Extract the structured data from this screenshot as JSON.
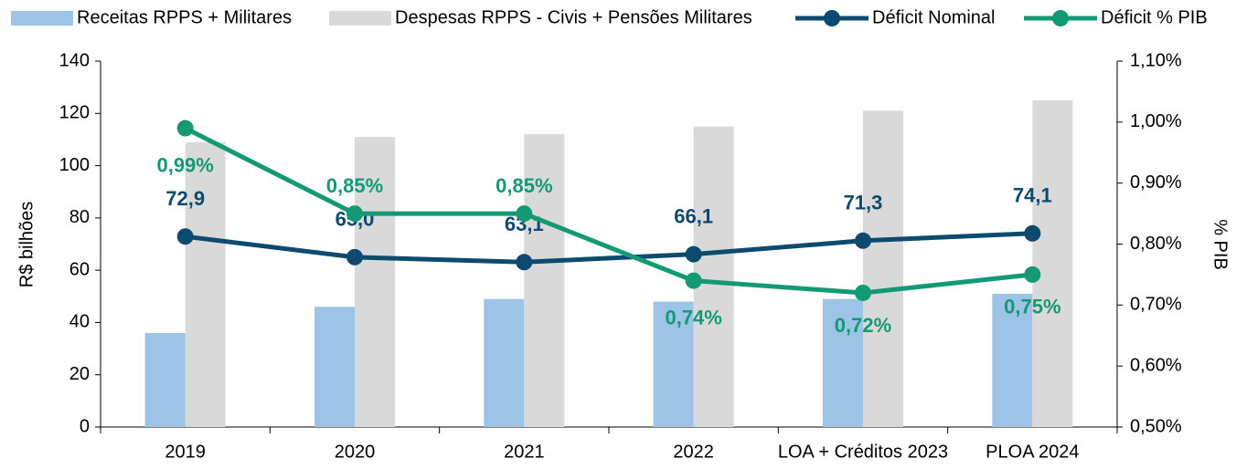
{
  "chart_data": {
    "type": "bar-line",
    "categories": [
      "2019",
      "2020",
      "2021",
      "2022",
      "LOA + Créditos 2023",
      "PLOA 2024"
    ],
    "series": [
      {
        "name": "Receitas RPPS + Militares",
        "type": "bar",
        "color": "#9dc3e6",
        "values": [
          36,
          46,
          49,
          48,
          49,
          51
        ]
      },
      {
        "name": "Despesas RPPS - Civis + Pensões Militares",
        "type": "bar",
        "color": "#d9d9d9",
        "values": [
          109,
          111,
          112,
          115,
          121,
          125
        ]
      },
      {
        "name": "Déficit Nominal",
        "type": "line",
        "color": "#0d4a70",
        "values": [
          72.9,
          65.0,
          63.1,
          66.1,
          71.3,
          74.1
        ],
        "value_labels": [
          "72,9",
          "65,0",
          "63,1",
          "66,1",
          "71,3",
          "74,1"
        ]
      },
      {
        "name": "Déficit % PIB",
        "type": "line",
        "axis": "y2",
        "color": "#139a74",
        "values": [
          0.99,
          0.85,
          0.85,
          0.74,
          0.72,
          0.75
        ],
        "value_labels": [
          "0,99%",
          "0,85%",
          "0,85%",
          "0,74%",
          "0,72%",
          "0,75%"
        ]
      }
    ],
    "ylabel": "R$ bilhões",
    "y2label": "% PIB",
    "ylim": [
      0,
      140
    ],
    "yticks": [
      0,
      20,
      40,
      60,
      80,
      100,
      120,
      140
    ],
    "y2lim": [
      0.5,
      1.1
    ],
    "y2ticks": [
      {
        "value": 0.5,
        "label": "0,50%"
      },
      {
        "value": 0.6,
        "label": "0,60%"
      },
      {
        "value": 0.7,
        "label": "0,70%"
      },
      {
        "value": 0.8,
        "label": "0,80%"
      },
      {
        "value": 0.9,
        "label": "0,90%"
      },
      {
        "value": 1.0,
        "label": "1,00%"
      },
      {
        "value": 1.1,
        "label": "1,10%"
      }
    ],
    "legend": "top",
    "grid": false
  }
}
